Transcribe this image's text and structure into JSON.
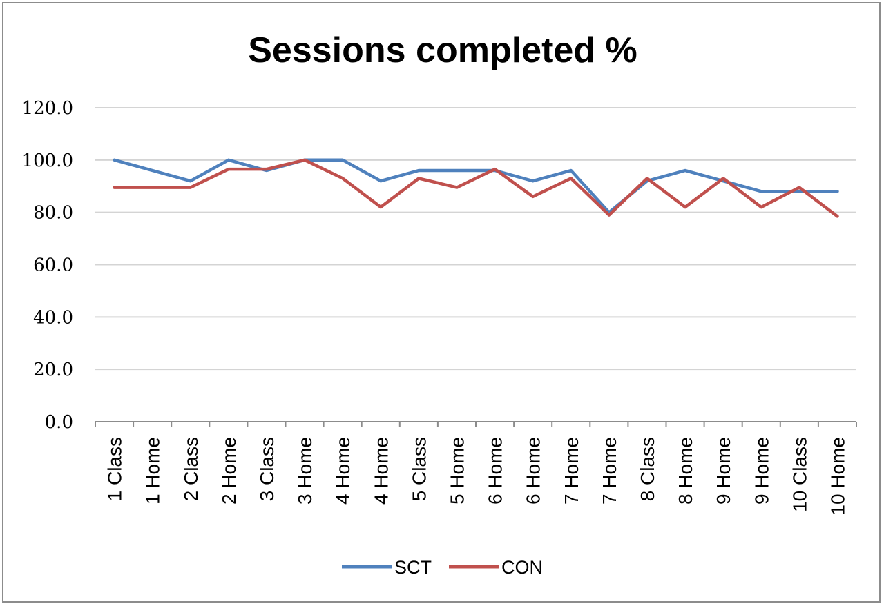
{
  "chart_data": {
    "type": "line",
    "title": "Sessions completed %",
    "xlabel": "",
    "ylabel": "",
    "categories": [
      "1 Class",
      "1 Home",
      "2 Class",
      "2 Home",
      "3 Class",
      "3 Home",
      "4 Home",
      "4 Home",
      "5 Class",
      "5 Home",
      "6 Home",
      "6 Home",
      "7 Home",
      "7 Home",
      "8 Class",
      "8 Home",
      "9 Home",
      "9 Home",
      "10 Class",
      "10 Home"
    ],
    "ylim": [
      0,
      120
    ],
    "yticks": [
      "0.0",
      "20.0",
      "40.0",
      "60.0",
      "80.0",
      "100.0",
      "120.0"
    ],
    "grid": true,
    "legend_position": "bottom",
    "series": [
      {
        "name": "SCT",
        "color": "#4f81bd",
        "values": [
          100,
          96,
          92,
          100,
          96,
          100,
          100,
          92,
          96,
          96,
          96,
          92,
          96,
          80,
          92,
          96,
          92,
          88,
          88,
          88
        ]
      },
      {
        "name": "CON",
        "color": "#c0504d",
        "values": [
          89.5,
          89.5,
          89.5,
          96.5,
          96.5,
          100,
          93,
          82,
          93,
          89.5,
          96.5,
          86,
          93,
          79,
          93,
          82,
          93,
          82,
          89.5,
          78.5
        ]
      }
    ]
  }
}
